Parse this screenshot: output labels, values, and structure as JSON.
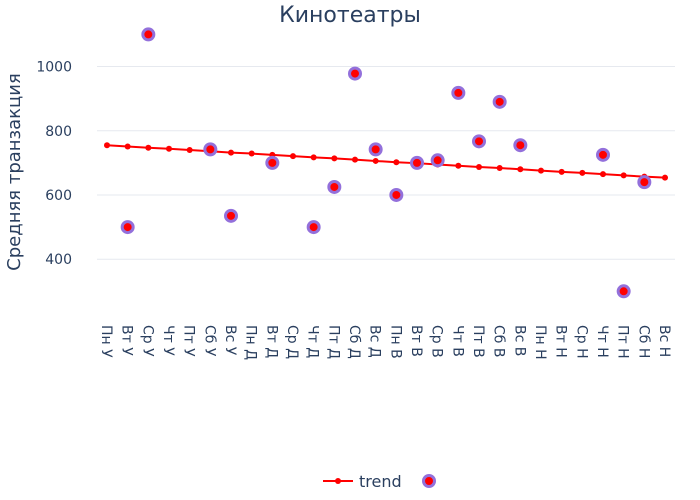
{
  "chart_data": {
    "type": "scatter",
    "title": "Кинотеатры",
    "xlabel": "",
    "ylabel": "Средняя транзакция",
    "categories": [
      "Пн У",
      "Вт У",
      "Ср У",
      "Чт У",
      "Пт У",
      "Сб У",
      "Вс У",
      "Пн Д",
      "Вт Д",
      "Ср Д",
      "Чт Д",
      "Пт Д",
      "Сб Д",
      "Вс Д",
      "Пн В",
      "Вт В",
      "Ср В",
      "Чт В",
      "Пт В",
      "Сб В",
      "Вс В",
      "Пн Н",
      "Вт Н",
      "Ср Н",
      "Чт Н",
      "Пт Н",
      "Сб Н",
      "Вс Н"
    ],
    "ylim": [
      220,
      1120
    ],
    "yticks": [
      400,
      600,
      800,
      1000
    ],
    "grid": true,
    "legend_position": "bottom",
    "series": [
      {
        "name": "trend",
        "mode": "lines+markers",
        "color": "#ff0000",
        "values": [
          755,
          751,
          747,
          744,
          740,
          736,
          732,
          729,
          725,
          721,
          717,
          714,
          710,
          706,
          702,
          699,
          695,
          691,
          687,
          684,
          680,
          676,
          672,
          669,
          665,
          661,
          657,
          654
        ]
      },
      {
        "name": "",
        "mode": "markers",
        "color": "#ff0000",
        "outline_color": "#9370db",
        "values": [
          null,
          500,
          1100,
          null,
          null,
          742,
          535,
          null,
          700,
          null,
          500,
          625,
          978,
          742,
          600,
          700,
          708,
          918,
          767,
          890,
          755,
          null,
          null,
          null,
          725,
          300,
          640,
          null
        ]
      }
    ]
  }
}
